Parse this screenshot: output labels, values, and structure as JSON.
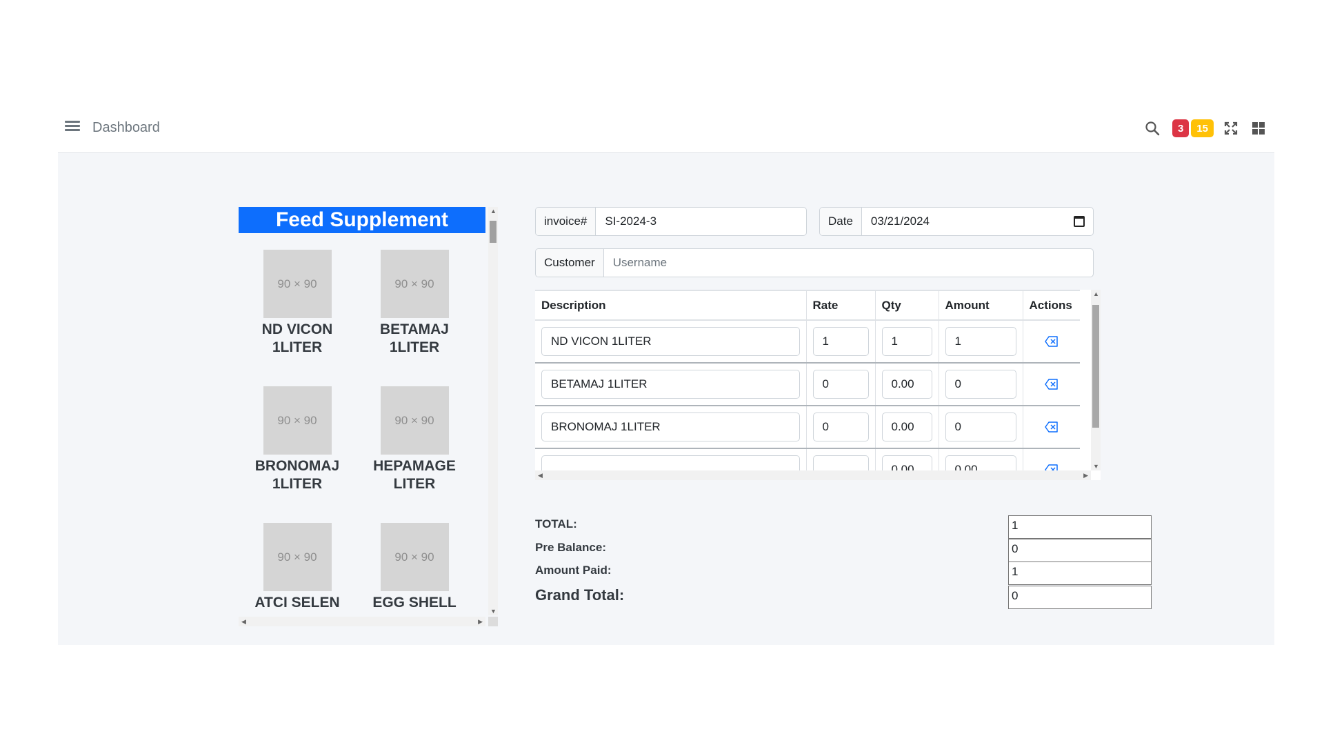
{
  "navbar": {
    "title": "Dashboard",
    "badges": {
      "red": "3",
      "yellow": "15"
    },
    "icons": [
      "menu-icon",
      "search-icon",
      "expand-icon",
      "grid-icon"
    ]
  },
  "products": {
    "header": "Feed Supplement",
    "items": [
      {
        "placeholder": "90 × 90",
        "name_line1": "ND VICON",
        "name_line2": "1LITER"
      },
      {
        "placeholder": "90 × 90",
        "name_line1": "BETAMAJ",
        "name_line2": "1LITER"
      },
      {
        "placeholder": "90 × 90",
        "name_line1": "BRONOMAJ",
        "name_line2": "1LITER"
      },
      {
        "placeholder": "90 × 90",
        "name_line1": "HEPAMAGE",
        "name_line2": "LITER"
      },
      {
        "placeholder": "90 × 90",
        "name_line1": "ATCI SELEN",
        "name_line2": ""
      },
      {
        "placeholder": "90 × 90",
        "name_line1": "EGG SHELL",
        "name_line2": ""
      }
    ]
  },
  "invoice": {
    "invoice_label": "invoice#",
    "invoice_value": "SI-2024-3",
    "date_label": "Date",
    "date_value": "03/21/2024",
    "customer_label": "Customer",
    "customer_placeholder": "Username"
  },
  "table": {
    "headers": {
      "description": "Description",
      "rate": "Rate",
      "qty": "Qty",
      "amount": "Amount",
      "actions": "Actions"
    },
    "rows": [
      {
        "description": "ND VICON   1LITER",
        "rate": "1",
        "qty": "1",
        "amount": "1"
      },
      {
        "description": "BETAMAJ  1LITER",
        "rate": "0",
        "qty": "0.00",
        "amount": "0"
      },
      {
        "description": "BRONOMAJ   1LITER",
        "rate": "0",
        "qty": "0.00",
        "amount": "0"
      },
      {
        "description": "",
        "rate": "",
        "qty": "0.00",
        "amount": "0.00"
      }
    ]
  },
  "totals": {
    "total_label": "TOTAL:",
    "total_value": "1",
    "pre_balance_label": "Pre Balance:",
    "pre_balance_value": "0",
    "amount_paid_label": "Amount Paid:",
    "amount_paid_value": "1",
    "grand_total_label": "Grand Total:",
    "grand_total_value": "0"
  },
  "colors": {
    "accent": "#0d6efd",
    "danger": "#dc3545",
    "warning": "#ffc107",
    "background": "#f4f6f9"
  }
}
